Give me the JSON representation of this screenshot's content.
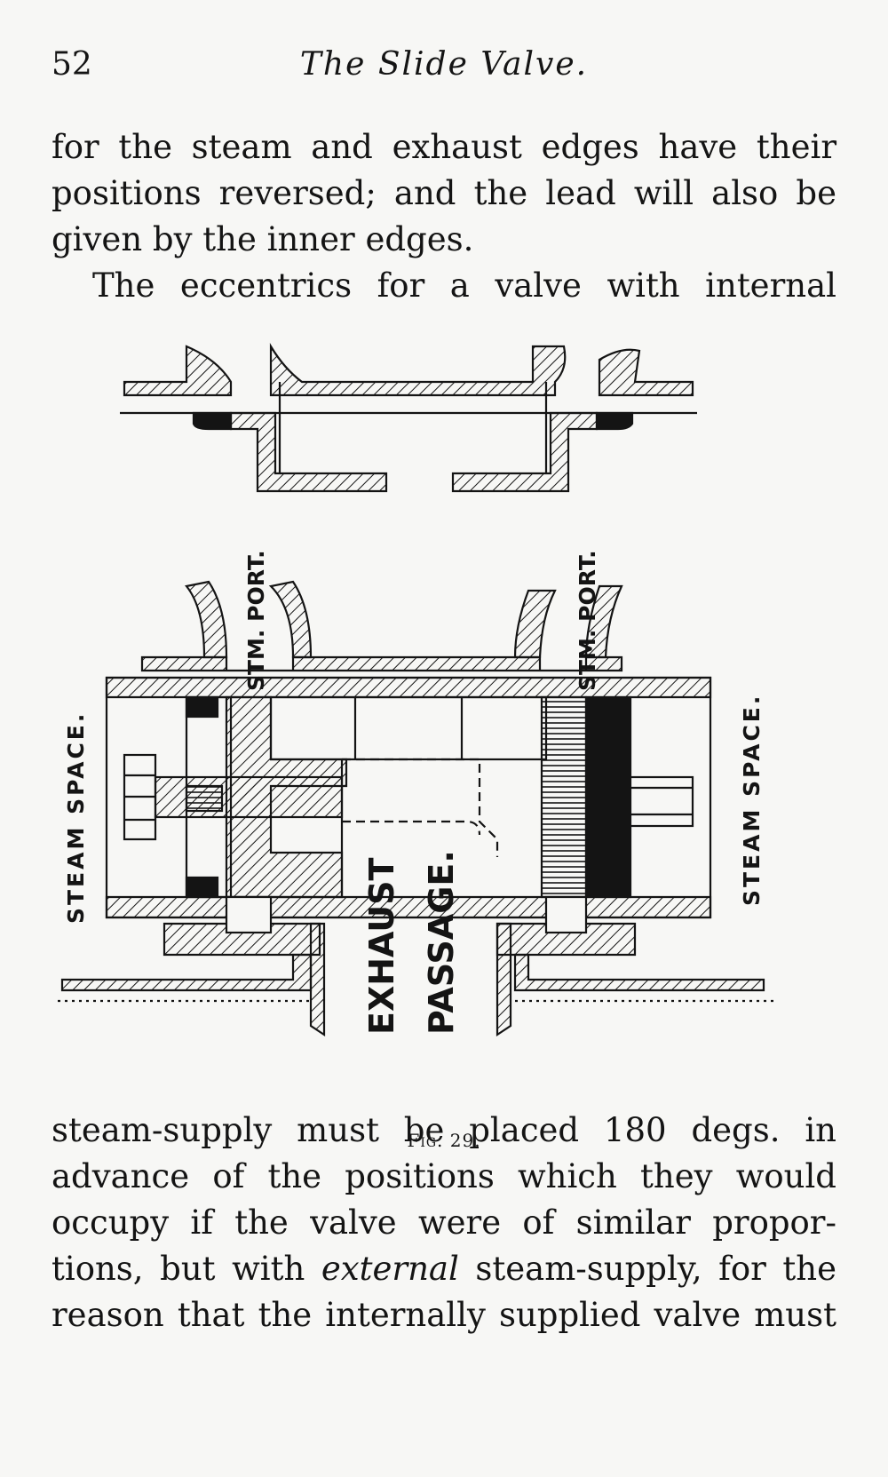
{
  "header": {
    "page_number": "52",
    "running_title": "The Slide Valve."
  },
  "paragraph_top": {
    "lines": [
      "for the steam and exhaust edges have their",
      "positions reversed; and the lead will also be",
      "given by the inner edges.",
      "The eccentrics for a valve with internal"
    ]
  },
  "figure": {
    "labels": {
      "stm_port_left": "STM. PORT.",
      "stm_port_right": "STM. PORT.",
      "steam_space_left": "STEAM SPACE.",
      "steam_space_right": "STEAM SPACE.",
      "exhaust": "EXHAUST",
      "passage": "PASSAGE."
    },
    "caption_prefix": "Fig.",
    "caption_number": "29."
  },
  "paragraph_bottom": {
    "line1": "steam-supply must be placed 180 degs. in",
    "line2": "advance of the positions which they would",
    "line3": "occupy if the valve were of similar propor-",
    "line4_a": "tions, but with ",
    "line4_em": "external",
    "line4_b": " steam-supply, for the",
    "line5": "reason that the internally supplied valve must"
  },
  "colors": {
    "ink": "#141414",
    "paper": "#f7f7f5"
  }
}
